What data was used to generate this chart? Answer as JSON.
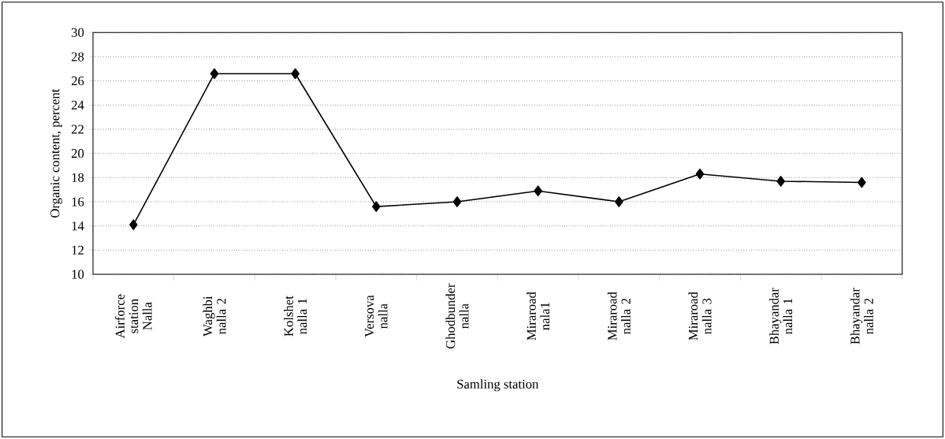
{
  "chart_data": {
    "type": "line",
    "xlabel": "Samling station",
    "ylabel": "Organic content, percent",
    "categories": [
      "Airforce station Nalla",
      "Waghbi nalla 2",
      "Kolshet nalla 1",
      "Versova nalla",
      "Ghodbunder nalla",
      "Miraroad nala1",
      "Miraroad nalla 2",
      "Miraroad nalla 3",
      "Bhayandar nalla 1",
      "Bhayandar nalla 2"
    ],
    "series": [
      {
        "color": "#000000",
        "values": [
          14.1,
          26.6,
          26.6,
          15.6,
          16.0,
          16.9,
          16.0,
          18.3,
          17.7,
          17.6
        ]
      }
    ],
    "ylim": [
      10,
      30
    ],
    "yticks": [
      10,
      12,
      14,
      16,
      18,
      20,
      22,
      24,
      26,
      28,
      30
    ],
    "grid": "y",
    "marker": "diamond",
    "line_style": "solid"
  }
}
